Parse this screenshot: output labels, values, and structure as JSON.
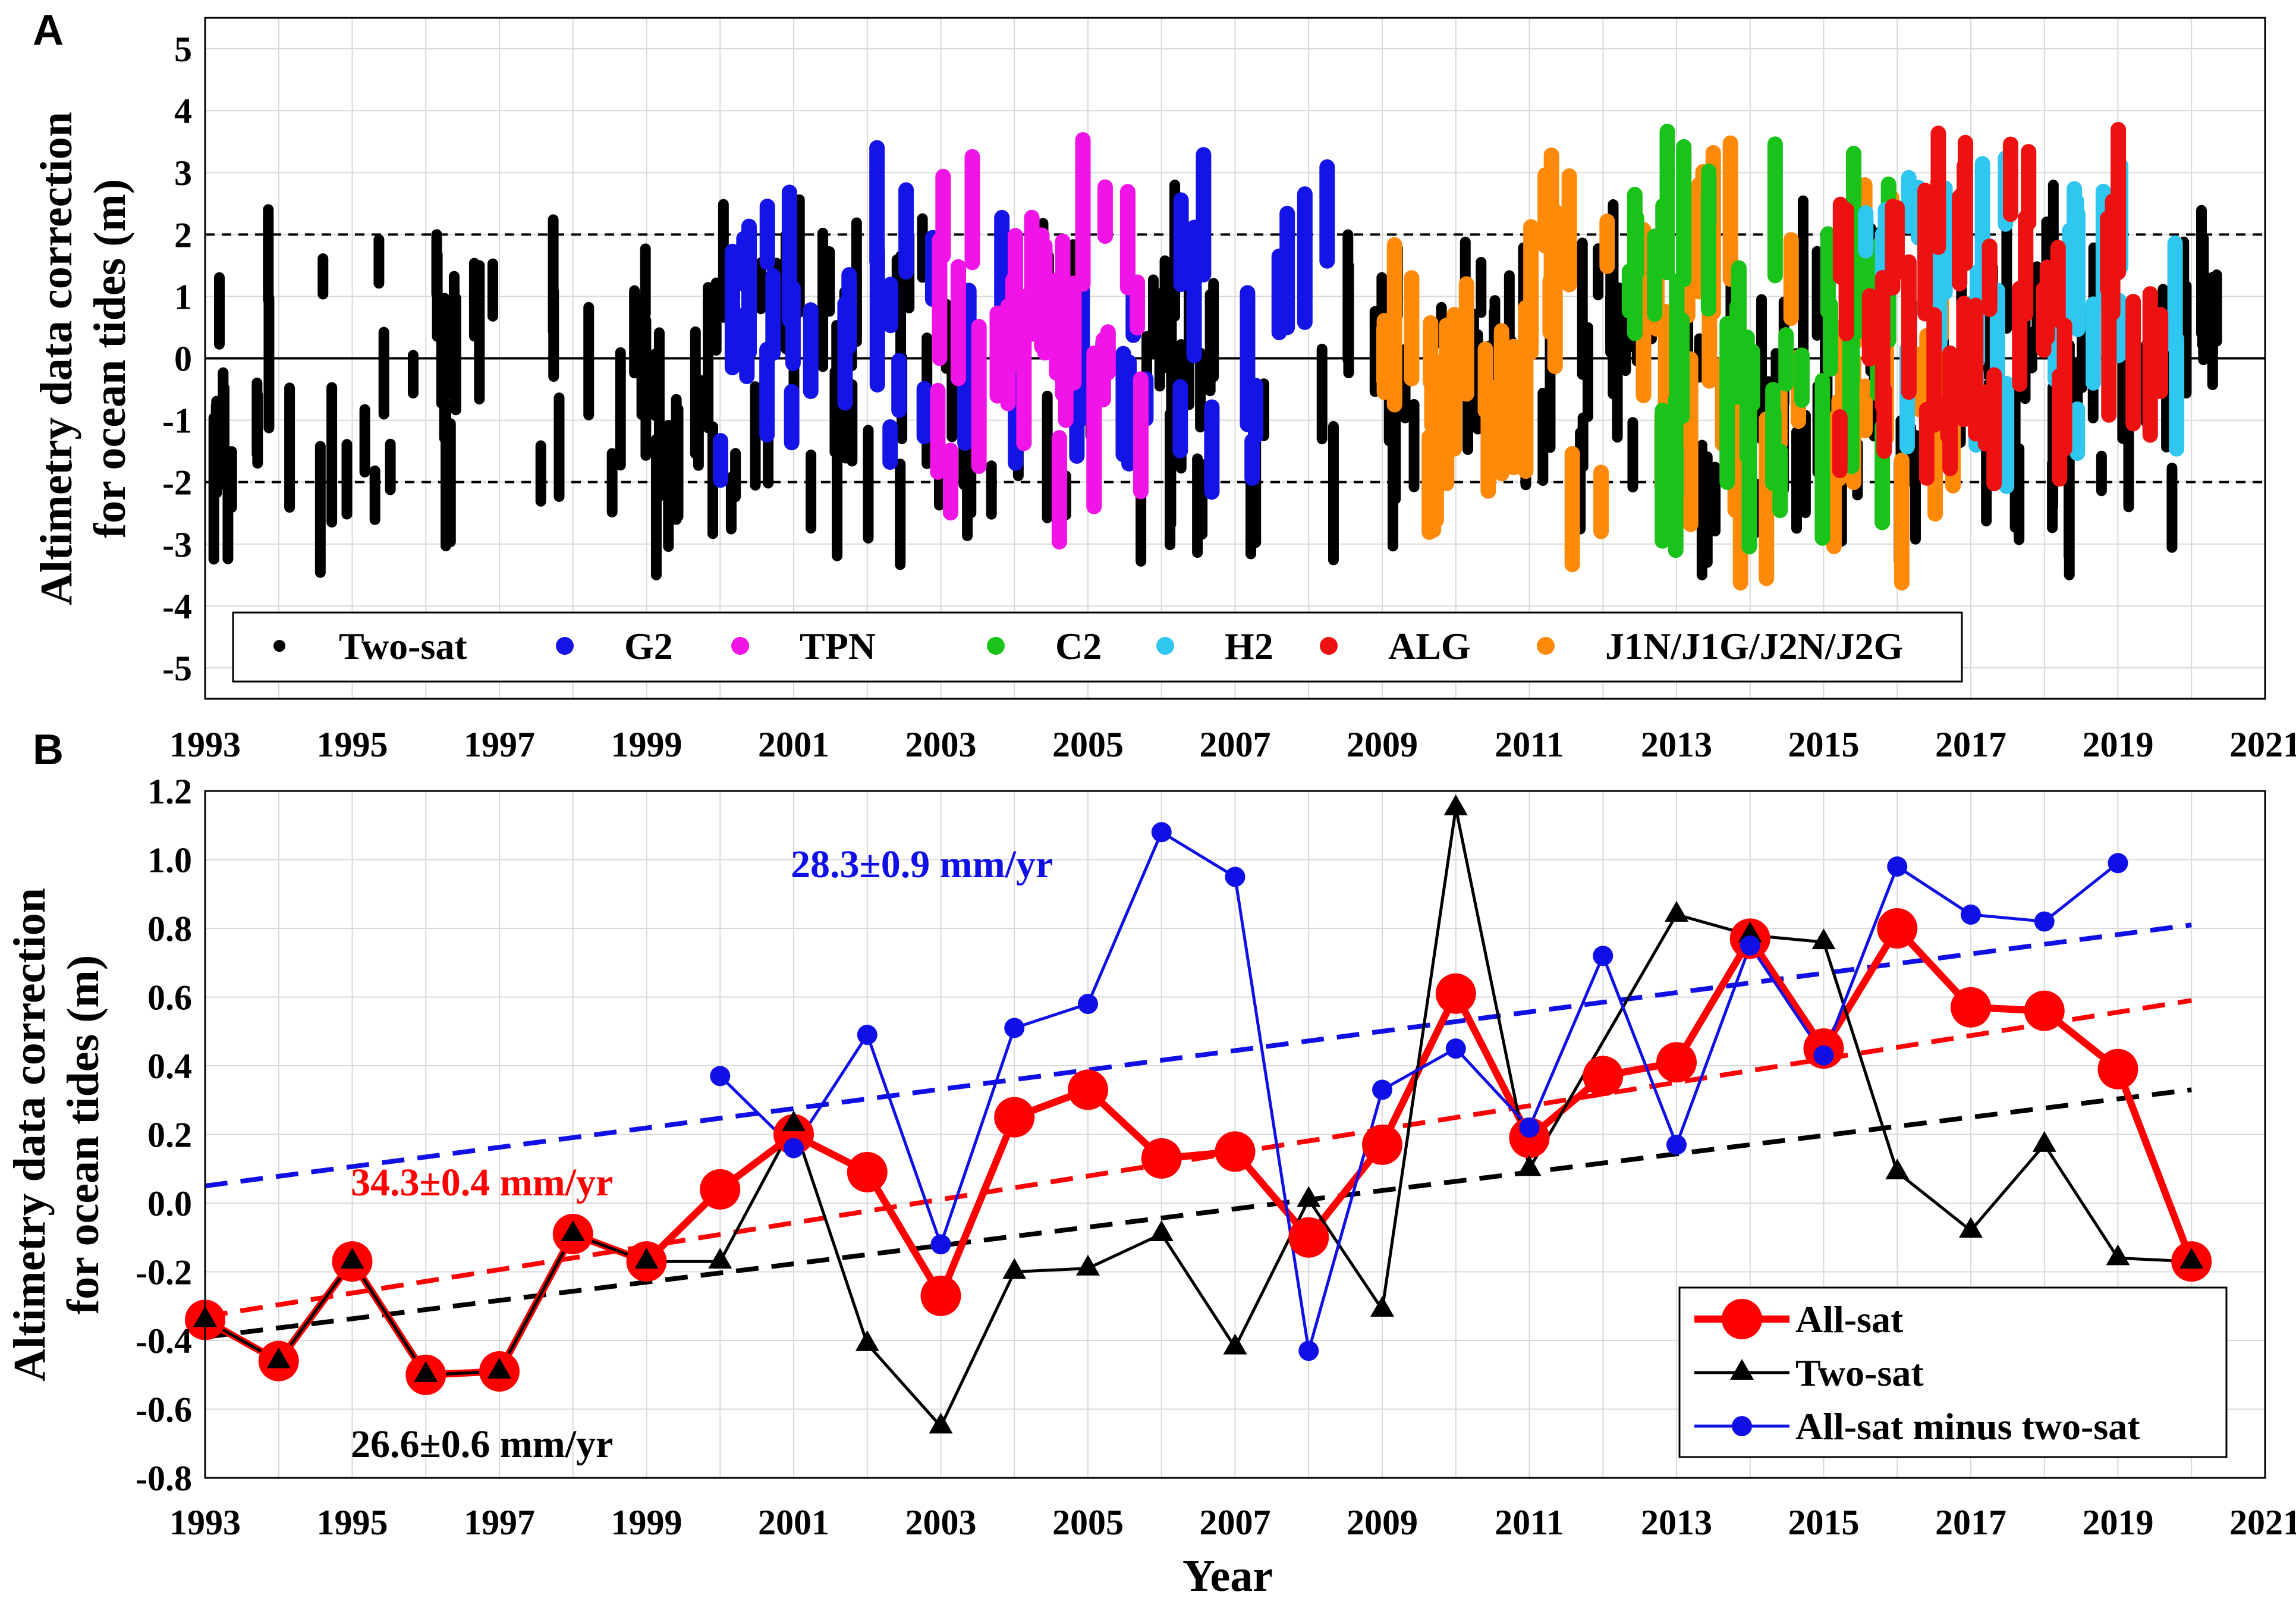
{
  "panel_a": {
    "label": "A",
    "chart_data": {
      "type": "scatter",
      "ylabel_line1": "Altimetry data correction",
      "ylabel_line2": "for ocean tides (m)",
      "xlim": [
        1993,
        2021
      ],
      "ylim": [
        -5.5,
        5.5
      ],
      "x_ticks": [
        "1993",
        "1995",
        "1997",
        "1999",
        "2001",
        "2003",
        "2005",
        "2007",
        "2009",
        "2011",
        "2013",
        "2015",
        "2017",
        "2019",
        "2021"
      ],
      "y_ticks": [
        "5",
        "4",
        "3",
        "2",
        "1",
        "0",
        "-1",
        "-2",
        "-3",
        "-4",
        "-5"
      ],
      "reference_lines": {
        "solid": 0,
        "dashed": [
          2,
          -2
        ]
      },
      "legend": [
        {
          "name": "Two-sat",
          "color": "#000000"
        },
        {
          "name": "G2",
          "color": "#1414e6"
        },
        {
          "name": "TPN",
          "color": "#f014e6"
        },
        {
          "name": "C2",
          "color": "#19c319"
        },
        {
          "name": "H2",
          "color": "#2fc6f0"
        },
        {
          "name": "ALG",
          "color": "#ee1111"
        },
        {
          "name": "J1N/J1G/J2N/J2G",
          "color": "#ff8a0a"
        }
      ],
      "series_spans": [
        {
          "name": "Two-sat",
          "x_range": [
            1993,
            2020.4
          ],
          "y_range": [
            -3.5,
            2.8
          ]
        },
        {
          "name": "G2",
          "x_range": [
            2000,
            2008.5
          ],
          "y_range": [
            -2.6,
            3.4
          ]
        },
        {
          "name": "TPN",
          "x_range": [
            2002.8,
            2005.8
          ],
          "y_range": [
            -3.2,
            3.7
          ]
        },
        {
          "name": "C2",
          "x_range": [
            2012.3,
            2016.0
          ],
          "y_range": [
            -3.1,
            3.9
          ]
        },
        {
          "name": "H2",
          "x_range": [
            2015.3,
            2019.8
          ],
          "y_range": [
            -2.1,
            3.6
          ]
        },
        {
          "name": "ALG",
          "x_range": [
            2015.2,
            2019.8
          ],
          "y_range": [
            -2.4,
            3.9
          ]
        },
        {
          "name": "J1N/J1G/J2N/J2G",
          "x_range": [
            2009.0,
            2017.0
          ],
          "y_range": [
            -3.8,
            3.7
          ]
        }
      ]
    }
  },
  "panel_b": {
    "label": "B",
    "chart_data": {
      "type": "line",
      "xlabel": "Year",
      "ylabel_line1": "Altimetry data correction",
      "ylabel_line2": "for ocean tides (m)",
      "xlim": [
        1993,
        2021
      ],
      "ylim": [
        -0.8,
        1.2
      ],
      "x_ticks": [
        "1993",
        "1995",
        "1997",
        "1999",
        "2001",
        "2003",
        "2005",
        "2007",
        "2009",
        "2011",
        "2013",
        "2015",
        "2017",
        "2019",
        "2021"
      ],
      "y_ticks": [
        "1.2",
        "1.0",
        "0.8",
        "0.6",
        "0.4",
        "0.2",
        "0.0",
        "-0.2",
        "-0.4",
        "-0.6",
        "-0.8"
      ],
      "series": [
        {
          "name": "All-sat",
          "color": "#ff0000",
          "x": [
            1993,
            1994,
            1995,
            1996,
            1997,
            1998,
            1999,
            2000,
            2001,
            2002,
            2003,
            2004,
            2005,
            2006,
            2007,
            2008,
            2009,
            2010,
            2011,
            2012,
            2013,
            2014,
            2015,
            2016,
            2017,
            2018,
            2019,
            2020
          ],
          "values": [
            -0.34,
            -0.46,
            -0.17,
            -0.5,
            -0.49,
            -0.09,
            -0.17,
            0.04,
            0.2,
            0.09,
            -0.27,
            0.25,
            0.33,
            0.13,
            0.15,
            -0.1,
            0.17,
            0.61,
            0.19,
            0.37,
            0.41,
            0.77,
            0.45,
            0.8,
            0.57,
            0.56,
            0.39,
            -0.17
          ]
        },
        {
          "name": "Two-sat",
          "color": "#000000",
          "x": [
            1993,
            1994,
            1995,
            1996,
            1997,
            1998,
            1999,
            2000,
            2001,
            2002,
            2003,
            2004,
            2005,
            2006,
            2007,
            2008,
            2009,
            2010,
            2011,
            2013,
            2014,
            2015,
            2016,
            2017,
            2018,
            2019,
            2020
          ],
          "values": [
            -0.34,
            -0.46,
            -0.17,
            -0.5,
            -0.49,
            -0.09,
            -0.17,
            -0.17,
            0.23,
            -0.41,
            -0.65,
            -0.2,
            -0.19,
            -0.09,
            -0.42,
            0.01,
            -0.31,
            1.15,
            0.1,
            0.84,
            0.78,
            0.76,
            0.09,
            -0.08,
            0.17,
            -0.16,
            -0.17
          ]
        },
        {
          "name": "All-sat minus two-sat",
          "color": "#1010e6",
          "x": [
            2000,
            2001,
            2002,
            2003,
            2004,
            2005,
            2006,
            2007,
            2008,
            2009,
            2010,
            2011,
            2012,
            2013,
            2014,
            2015,
            2016,
            2017,
            2018,
            2019
          ],
          "values": [
            0.37,
            0.16,
            0.49,
            -0.12,
            0.51,
            0.58,
            1.08,
            0.95,
            -0.43,
            0.33,
            0.45,
            0.22,
            0.72,
            0.17,
            0.75,
            0.43,
            0.98,
            0.84,
            0.82,
            0.99
          ]
        }
      ],
      "trends": [
        {
          "color": "#1010e6",
          "x": [
            1993,
            2020
          ],
          "y": [
            0.05,
            0.81
          ],
          "label": "28.3±0.9 mm/yr"
        },
        {
          "color": "#ff0000",
          "x": [
            1993,
            2020
          ],
          "y": [
            -0.33,
            0.59
          ],
          "label": "34.3±0.4 mm/yr"
        },
        {
          "color": "#000000",
          "x": [
            1993,
            2020
          ],
          "y": [
            -0.39,
            0.33
          ],
          "label": "26.6±0.6 mm/yr"
        }
      ],
      "legend": [
        "All-sat",
        "Two-sat",
        "All-sat minus two-sat"
      ]
    }
  }
}
